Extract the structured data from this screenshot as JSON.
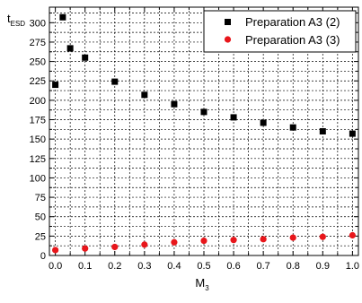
{
  "chart_data": {
    "type": "scatter",
    "xlabel": "M",
    "xlabel_sub": "3",
    "ylabel": "t",
    "ylabel_sub": "ESD",
    "xlim": [
      -0.02,
      1.02
    ],
    "ylim": [
      0,
      320
    ],
    "x_ticks": [
      0.0,
      0.1,
      0.2,
      0.3,
      0.4,
      0.5,
      0.6,
      0.7,
      0.8,
      0.9,
      1.0
    ],
    "x_tick_labels": [
      "0.0",
      "0.1",
      "0.2",
      "0.3",
      "0.4",
      "0.5",
      "0.6",
      "0.7",
      "0.8",
      "0.9",
      "1.0"
    ],
    "y_ticks": [
      0,
      25,
      50,
      75,
      100,
      125,
      150,
      175,
      200,
      225,
      250,
      275,
      300
    ],
    "y_tick_labels": [
      "0",
      "25",
      "50",
      "75",
      "100",
      "125",
      "150",
      "175",
      "200",
      "225",
      "250",
      "275",
      "300"
    ],
    "grid": true,
    "legend_position": "top-right",
    "series": [
      {
        "name": "Preparation A3 (2)",
        "marker": "square",
        "color": "#000000",
        "points": [
          {
            "x": 0.0,
            "y": 220
          },
          {
            "x": 0.025,
            "y": 307
          },
          {
            "x": 0.05,
            "y": 267
          },
          {
            "x": 0.1,
            "y": 255
          },
          {
            "x": 0.2,
            "y": 224
          },
          {
            "x": 0.3,
            "y": 207
          },
          {
            "x": 0.4,
            "y": 195
          },
          {
            "x": 0.5,
            "y": 185
          },
          {
            "x": 0.6,
            "y": 178
          },
          {
            "x": 0.7,
            "y": 171
          },
          {
            "x": 0.8,
            "y": 165
          },
          {
            "x": 0.9,
            "y": 160
          },
          {
            "x": 1.0,
            "y": 157
          }
        ]
      },
      {
        "name": "Preparation A3 (3)",
        "marker": "circle",
        "color": "#e8161b",
        "points": [
          {
            "x": 0.0,
            "y": 7
          },
          {
            "x": 0.1,
            "y": 9
          },
          {
            "x": 0.2,
            "y": 11
          },
          {
            "x": 0.3,
            "y": 14
          },
          {
            "x": 0.4,
            "y": 17
          },
          {
            "x": 0.5,
            "y": 19
          },
          {
            "x": 0.6,
            "y": 20
          },
          {
            "x": 0.7,
            "y": 21
          },
          {
            "x": 0.8,
            "y": 23
          },
          {
            "x": 0.9,
            "y": 24
          },
          {
            "x": 1.0,
            "y": 26
          }
        ]
      }
    ]
  }
}
